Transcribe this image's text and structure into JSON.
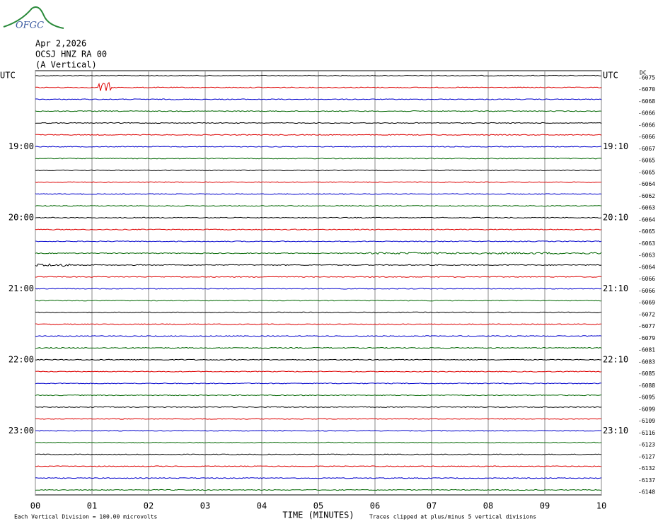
{
  "chart_data": {
    "type": "helicorder",
    "logo": "OFGC",
    "date": "Apr 2,2026",
    "station": "OCSJ HNZ RA 00",
    "component": "(A Vertical)",
    "dc_header": "DC",
    "x_label": "TIME (MINUTES)",
    "scale_note": "Each Vertical Division =  100.00 microvolts",
    "clip_note": "Traces clipped at plus/minus 5 vertical divisions",
    "xlim": [
      0,
      10
    ],
    "xticks": [
      {
        "value": 0,
        "label": "00"
      },
      {
        "value": 1,
        "label": "01"
      },
      {
        "value": 2,
        "label": "02"
      },
      {
        "value": 3,
        "label": "03"
      },
      {
        "value": 4,
        "label": "04"
      },
      {
        "value": 5,
        "label": "05"
      },
      {
        "value": 6,
        "label": "06"
      },
      {
        "value": 7,
        "label": "07"
      },
      {
        "value": 8,
        "label": "08"
      },
      {
        "value": 9,
        "label": "09"
      },
      {
        "value": 10,
        "label": "10"
      }
    ],
    "trace_colors": [
      "#000000",
      "#dd0000",
      "#0000cc",
      "#006600"
    ],
    "left_labels": [
      "UTC",
      null,
      null,
      null,
      null,
      null,
      "19:00",
      null,
      null,
      null,
      null,
      null,
      "20:00",
      null,
      null,
      null,
      null,
      null,
      "21:00",
      null,
      null,
      null,
      null,
      null,
      "22:00",
      null,
      null,
      null,
      null,
      null,
      "23:00",
      null,
      null,
      null,
      null,
      null
    ],
    "right_labels": [
      "UTC",
      null,
      null,
      null,
      null,
      null,
      "19:10",
      null,
      null,
      null,
      null,
      null,
      "20:10",
      null,
      null,
      null,
      null,
      null,
      "21:10",
      null,
      null,
      null,
      null,
      null,
      "22:10",
      null,
      null,
      null,
      null,
      null,
      "23:10",
      null,
      null,
      null,
      null,
      null
    ],
    "dc_offsets": [
      -6075,
      -6070,
      -6068,
      -6066,
      -6066,
      -6066,
      -6067,
      -6065,
      -6065,
      -6064,
      -6062,
      -6063,
      -6064,
      -6065,
      -6063,
      -6063,
      -6064,
      -6066,
      -6066,
      -6069,
      -6072,
      -6077,
      -6079,
      -6081,
      -6083,
      -6085,
      -6088,
      -6095,
      -6099,
      -6109,
      -6116,
      -6123,
      -6127,
      -6132,
      -6137,
      -6148
    ]
  }
}
